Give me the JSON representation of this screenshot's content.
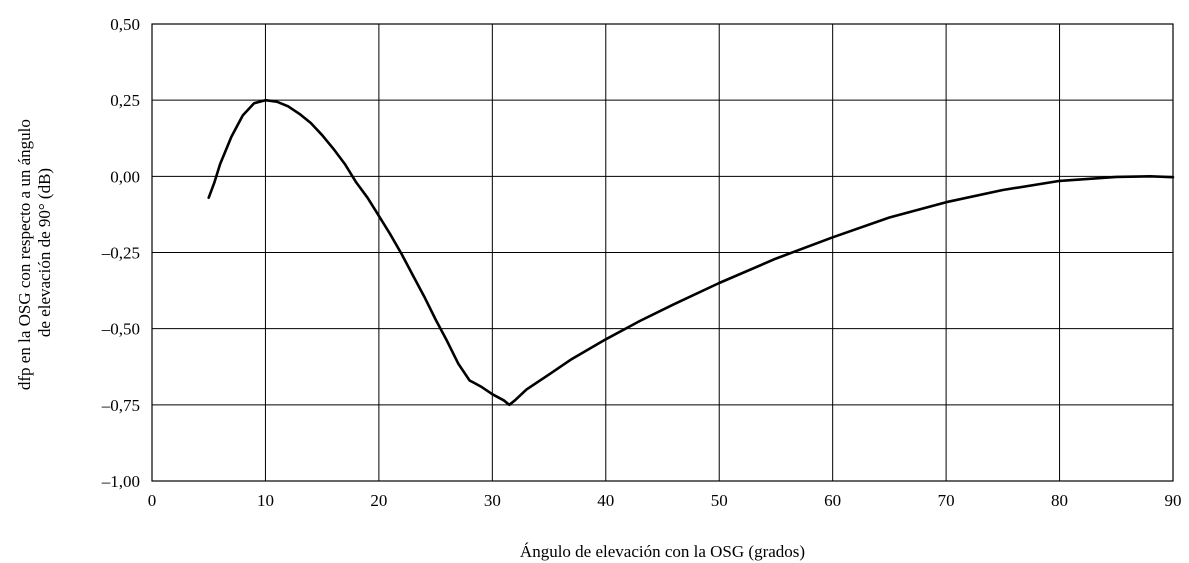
{
  "chart_data": {
    "type": "line",
    "xlabel": "Ángulo de elevación con la OSG (grados)",
    "ylabel_lines": [
      "dfp en la OSG con respecto a un ángulo",
      "de elevación de 90° (dB)"
    ],
    "xlim": [
      0,
      90
    ],
    "ylim": [
      -1.0,
      0.5
    ],
    "x_ticks": [
      0,
      10,
      20,
      30,
      40,
      50,
      60,
      70,
      80,
      90
    ],
    "x_tick_labels": [
      "0",
      "10",
      "20",
      "30",
      "40",
      "50",
      "60",
      "70",
      "80",
      "90"
    ],
    "y_ticks": [
      0.5,
      0.25,
      0.0,
      -0.25,
      -0.5,
      -0.75,
      -1.0
    ],
    "y_tick_labels": [
      "0,50",
      "0,25",
      "0,00",
      "–0,25",
      "–0,50",
      "–0,75",
      "–1,00"
    ],
    "grid": true,
    "line_color": "#000000",
    "series": [
      {
        "x": [
          5,
          5.5,
          6,
          7,
          8,
          9,
          10,
          11,
          12,
          13,
          14,
          15,
          16,
          17,
          18,
          19,
          20,
          21,
          22,
          23,
          24,
          25,
          26,
          27,
          28,
          28.5,
          29,
          30,
          31,
          31.5,
          32,
          33,
          35,
          37,
          40,
          43,
          46,
          50,
          55,
          60,
          65,
          70,
          75,
          80,
          85,
          88,
          90
        ],
        "y": [
          -0.07,
          -0.02,
          0.04,
          0.13,
          0.2,
          0.24,
          0.25,
          0.245,
          0.23,
          0.205,
          0.175,
          0.135,
          0.09,
          0.04,
          -0.02,
          -0.07,
          -0.13,
          -0.19,
          -0.255,
          -0.325,
          -0.395,
          -0.47,
          -0.54,
          -0.615,
          -0.67,
          -0.68,
          -0.69,
          -0.715,
          -0.735,
          -0.75,
          -0.735,
          -0.7,
          -0.65,
          -0.6,
          -0.535,
          -0.475,
          -0.42,
          -0.35,
          -0.27,
          -0.2,
          -0.135,
          -0.085,
          -0.045,
          -0.015,
          -0.002,
          0.0,
          -0.003
        ]
      }
    ]
  }
}
